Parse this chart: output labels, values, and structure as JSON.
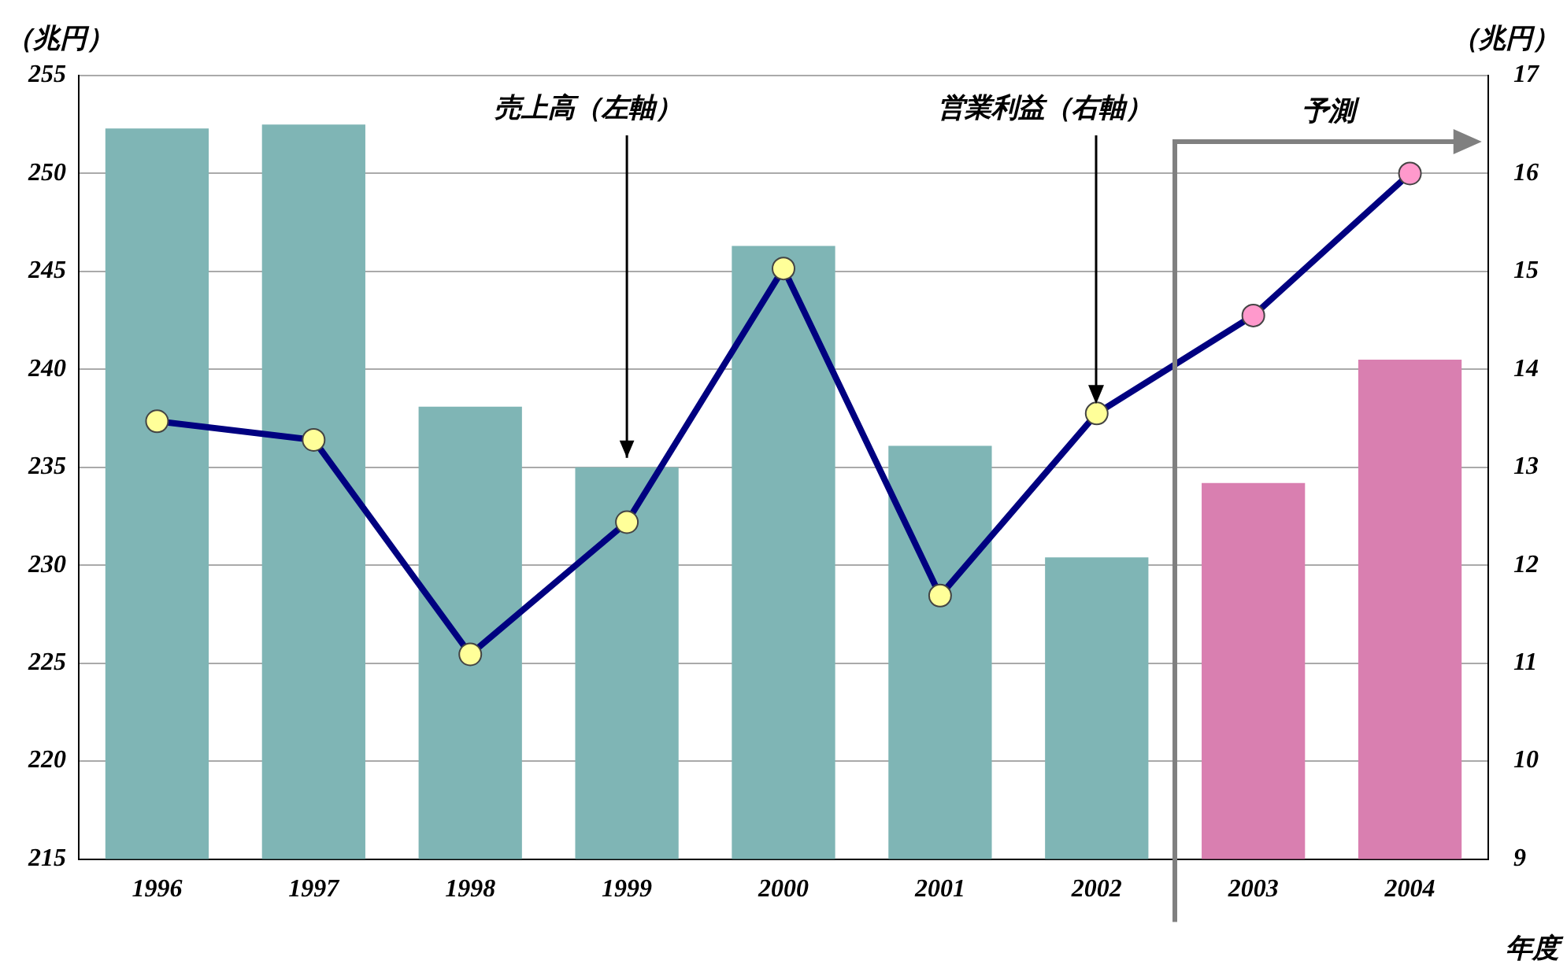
{
  "chart_data": {
    "type": "bar",
    "categories": [
      "1996",
      "1997",
      "1998",
      "1999",
      "2000",
      "2001",
      "2002",
      "2003",
      "2004"
    ],
    "xlabel": "年度",
    "ylabel": "（兆円）",
    "y2label": "（兆円）",
    "ylim": [
      215,
      255
    ],
    "yticks": [
      215,
      220,
      225,
      230,
      235,
      240,
      245,
      250,
      255
    ],
    "y2lim": [
      9,
      17
    ],
    "y2ticks": [
      9,
      10,
      11,
      12,
      13,
      14,
      15,
      16,
      17
    ],
    "grid": "y",
    "legend": false,
    "marker": "circle",
    "series": [
      {
        "colors": [
          "#7fb5b5",
          "#7fb5b5",
          "#7fb5b5",
          "#7fb5b5",
          "#7fb5b5",
          "#7fb5b5",
          "#7fb5b5",
          "#d97fb0",
          "#d97fb0"
        ],
        "values": [
          252.3,
          252.5,
          238.1,
          235.0,
          246.3,
          236.1,
          230.4,
          234.2,
          240.5
        ]
      },
      {
        "type": "line",
        "axis": "y2",
        "color": "#000080",
        "colors": [
          "#ffff99",
          "#ffff99",
          "#ffff99",
          "#ffff99",
          "#ffff99",
          "#ffff99",
          "#ffff99",
          "#ff99cc",
          "#ff99cc"
        ],
        "values": [
          13.47,
          13.28,
          11.09,
          12.44,
          15.03,
          11.69,
          13.55,
          14.55,
          16.0
        ]
      }
    ],
    "annotations": [
      {
        "text": "売上高（左軸）",
        "x": "1999",
        "y": 235.0
      },
      "営業利益（右軸）",
      "予測"
    ]
  }
}
